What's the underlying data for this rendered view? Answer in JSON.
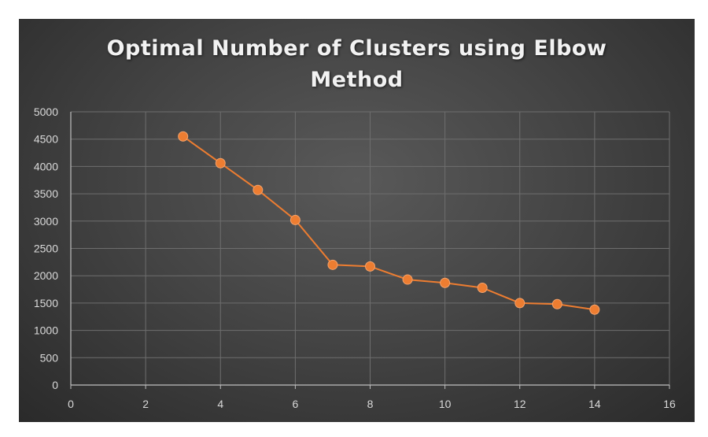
{
  "chart_data": {
    "type": "scatter",
    "title": "Optimal Number of Clusters using Elbow Method",
    "title_lines": [
      "Optimal Number of Clusters using Elbow",
      "Method"
    ],
    "xlabel": "",
    "ylabel": "",
    "xlim": [
      0,
      16
    ],
    "ylim": [
      0,
      5000
    ],
    "x_ticks": [
      0,
      2,
      4,
      6,
      8,
      10,
      12,
      14,
      16
    ],
    "y_ticks": [
      0,
      500,
      1000,
      1500,
      2000,
      2500,
      3000,
      3500,
      4000,
      4500,
      5000
    ],
    "grid": true,
    "legend": "none",
    "series": [
      {
        "x": [
          3,
          4,
          5,
          6,
          7,
          8,
          9,
          10,
          11,
          12,
          13,
          14
        ],
        "y": [
          4550,
          4060,
          3570,
          3020,
          2200,
          2170,
          1930,
          1870,
          1780,
          1500,
          1480,
          1380
        ],
        "color": "#ed7d31",
        "line": true,
        "markers": true
      }
    ]
  }
}
